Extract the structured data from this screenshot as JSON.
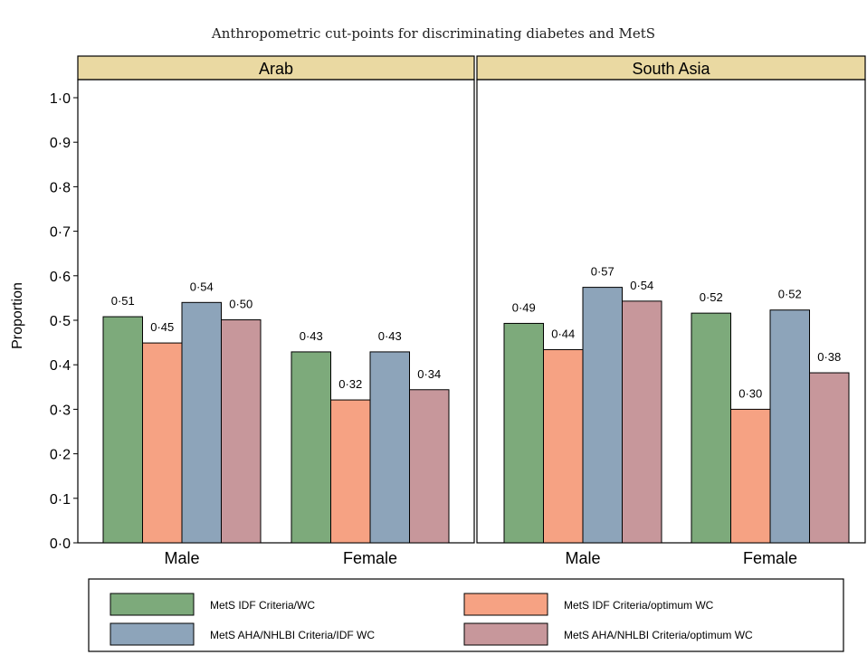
{
  "chart_data": {
    "type": "bar",
    "title": "Anthropometric cut-points for discriminating diabetes and MetS",
    "ylabel": "Proportion",
    "ylim": [
      0,
      1.0
    ],
    "yticks": [
      "0·0",
      "0·1",
      "0·2",
      "0·3",
      "0·4",
      "0·5",
      "0·6",
      "0·7",
      "0·8",
      "0·9",
      "1·0"
    ],
    "grid": false,
    "legend_position": "bottom",
    "categories": [
      "Male",
      "Female"
    ],
    "series_colors": [
      "#7daa7b",
      "#f6a283",
      "#8da4ba",
      "#c7979b"
    ],
    "series_names": [
      "MetS IDF Criteria/WC",
      "MetS IDF Criteria/optimum WC",
      "MetS AHA/NHLBI Criteria/IDF WC",
      "MetS AHA/NHLBI Criteria/optimum WC"
    ],
    "panels": [
      {
        "name": "Arab",
        "values": [
          [
            0.508,
            0.449,
            0.54,
            0.501
          ],
          [
            0.429,
            0.321,
            0.429,
            0.344
          ]
        ],
        "labels": [
          [
            "0·51",
            "0·45",
            "0·54",
            "0·50"
          ],
          [
            "0·43",
            "0·32",
            "0·43",
            "0·34"
          ]
        ]
      },
      {
        "name": "South Asia",
        "values": [
          [
            0.493,
            0.434,
            0.574,
            0.543
          ],
          [
            0.516,
            0.3,
            0.523,
            0.382
          ]
        ],
        "labels": [
          [
            "0·49",
            "0·44",
            "0·57",
            "0·54"
          ],
          [
            "0·52",
            "0·30",
            "0·52",
            "0·38"
          ]
        ]
      }
    ]
  }
}
